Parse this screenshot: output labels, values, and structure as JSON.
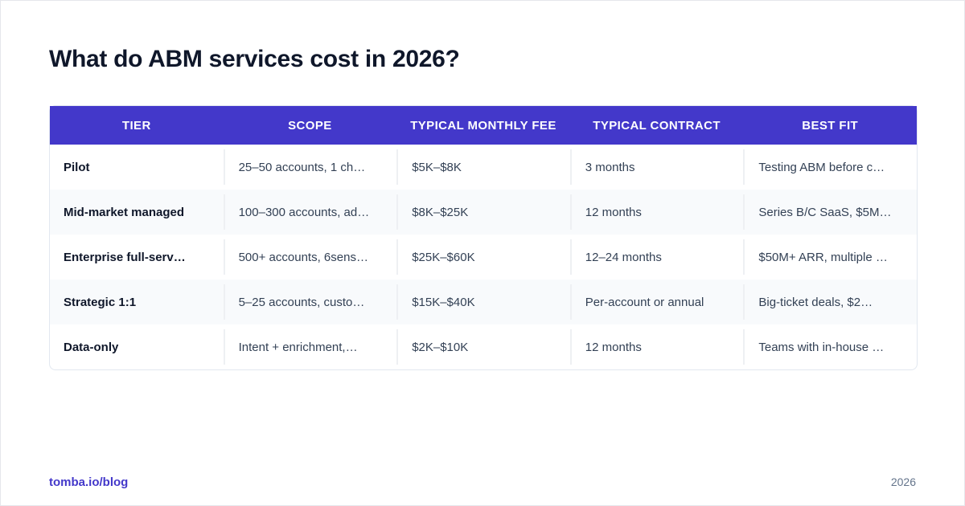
{
  "title": "What do ABM services cost in 2026?",
  "table": {
    "headers": [
      "TIER",
      "SCOPE",
      "TYPICAL MONTHLY FEE",
      "TYPICAL CONTRACT",
      "BEST FIT"
    ],
    "rows": [
      [
        "Pilot",
        "25–50 accounts, 1 ch…",
        "$5K–$8K",
        "3 months",
        "Testing ABM before c…"
      ],
      [
        "Mid-market managed",
        "100–300 accounts, ad…",
        "$8K–$25K",
        "12 months",
        "Series B/C SaaS, $5M…"
      ],
      [
        "Enterprise full-serv…",
        "500+ accounts, 6sens…",
        "$25K–$60K",
        "12–24 months",
        "$50M+ ARR, multiple …"
      ],
      [
        "Strategic 1:1",
        "5–25 accounts, custo…",
        "$15K–$40K",
        "Per-account or annual",
        "Big-ticket deals, $2…"
      ],
      [
        "Data-only",
        "Intent + enrichment,…",
        "$2K–$10K",
        "12 months",
        "Teams with in-house …"
      ]
    ]
  },
  "footer": {
    "source": "tomba.io/blog",
    "year": "2026"
  },
  "colors": {
    "header_bg": "#4338ca",
    "accent": "#4338ca",
    "alt_row": "#f8fafc"
  }
}
